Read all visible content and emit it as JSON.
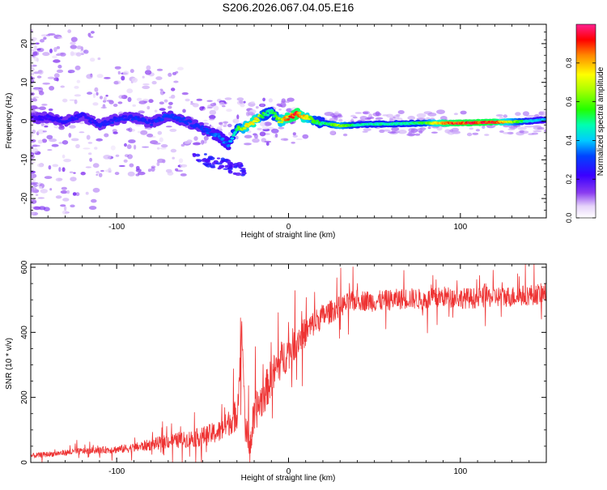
{
  "title": "S206.2026.067.04.05.E16",
  "chart_data": [
    {
      "type": "heatmap",
      "xlabel": "Height of straight line (km)",
      "ylabel": "Frequency (Hz)",
      "xlim": [
        -150,
        150
      ],
      "ylim": [
        -25,
        25
      ],
      "xticks": [
        -100,
        0,
        100
      ],
      "xtick_labels": [
        "-100",
        "0",
        "100"
      ],
      "yticks": [
        -20,
        -10,
        0,
        10,
        20
      ],
      "ytick_labels": [
        "-20",
        "-10",
        "0",
        "10",
        "20"
      ],
      "ridge": {
        "x": [
          -150,
          -140,
          -130,
          -120,
          -110,
          -100,
          -90,
          -80,
          -70,
          -60,
          -50,
          -45,
          -40,
          -35,
          -30,
          -25,
          -20,
          -15,
          -10,
          -5,
          0,
          5,
          10,
          15,
          20,
          30,
          40,
          50,
          60,
          70,
          80,
          90,
          100,
          110,
          120,
          130,
          140,
          150
        ],
        "y": [
          0.5,
          1,
          0,
          1.5,
          -1,
          0.5,
          1,
          -0.5,
          1.5,
          0,
          -2,
          -3,
          -4,
          -6,
          -2,
          -1.5,
          0,
          1.5,
          2.5,
          0,
          1,
          2,
          1,
          0,
          -0.5,
          -1.2,
          -1,
          -0.8,
          -0.7,
          -0.6,
          -0.5,
          -0.5,
          -0.5,
          -0.4,
          -0.3,
          -0.2,
          0,
          0.5
        ],
        "amplitude": [
          0.22,
          0.24,
          0.26,
          0.25,
          0.27,
          0.28,
          0.3,
          0.28,
          0.32,
          0.3,
          0.3,
          0.34,
          0.36,
          0.38,
          0.55,
          0.75,
          0.85,
          0.6,
          0.5,
          0.7,
          0.9,
          0.95,
          0.8,
          0.6,
          0.5,
          0.7,
          0.5,
          0.5,
          0.5,
          0.5,
          0.6,
          0.9,
          0.95,
          0.96,
          0.95,
          0.7,
          0.45,
          0.4
        ]
      },
      "colorbar": {
        "label": "Normalized spectral amplitude",
        "range": [
          0,
          1
        ],
        "ticks": [
          0.0,
          0.2,
          0.4,
          0.6,
          0.8
        ],
        "tick_labels": [
          "0.0",
          "0.2",
          "0.4",
          "0.6",
          "0.8"
        ]
      }
    },
    {
      "type": "line",
      "xlabel": "Height of straight line (km)",
      "ylabel": "SNR (10 * v/v)",
      "xlim": [
        -150,
        150
      ],
      "ylim": [
        0,
        610
      ],
      "xticks": [
        -100,
        0,
        100
      ],
      "xtick_labels": [
        "-100",
        "0",
        "100"
      ],
      "yticks": [
        0,
        200,
        400,
        600
      ],
      "ytick_labels": [
        "0",
        "200",
        "400",
        "600"
      ],
      "color": "#ee3333",
      "series": [
        {
          "name": "SNR",
          "x": [
            -150,
            -140,
            -130,
            -120,
            -110,
            -100,
            -90,
            -80,
            -70,
            -60,
            -50,
            -40,
            -35,
            -30,
            -27,
            -25,
            -22,
            -20,
            -15,
            -10,
            -5,
            0,
            5,
            10,
            15,
            20,
            25,
            30,
            40,
            50,
            60,
            70,
            80,
            90,
            100,
            110,
            120,
            130,
            140,
            150
          ],
          "y": [
            20,
            25,
            30,
            35,
            38,
            40,
            45,
            55,
            65,
            70,
            80,
            95,
            120,
            150,
            400,
            90,
            60,
            150,
            200,
            260,
            310,
            340,
            380,
            400,
            430,
            450,
            465,
            480,
            500,
            495,
            500,
            505,
            500,
            510,
            505,
            505,
            510,
            510,
            515,
            520
          ],
          "noise": [
            8,
            8,
            9,
            10,
            10,
            12,
            14,
            18,
            22,
            25,
            30,
            35,
            40,
            50,
            60,
            50,
            50,
            60,
            60,
            60,
            60,
            55,
            50,
            45,
            40,
            38,
            35,
            32,
            32,
            32,
            32,
            32,
            32,
            32,
            32,
            32,
            32,
            32,
            32,
            32
          ]
        }
      ]
    }
  ]
}
